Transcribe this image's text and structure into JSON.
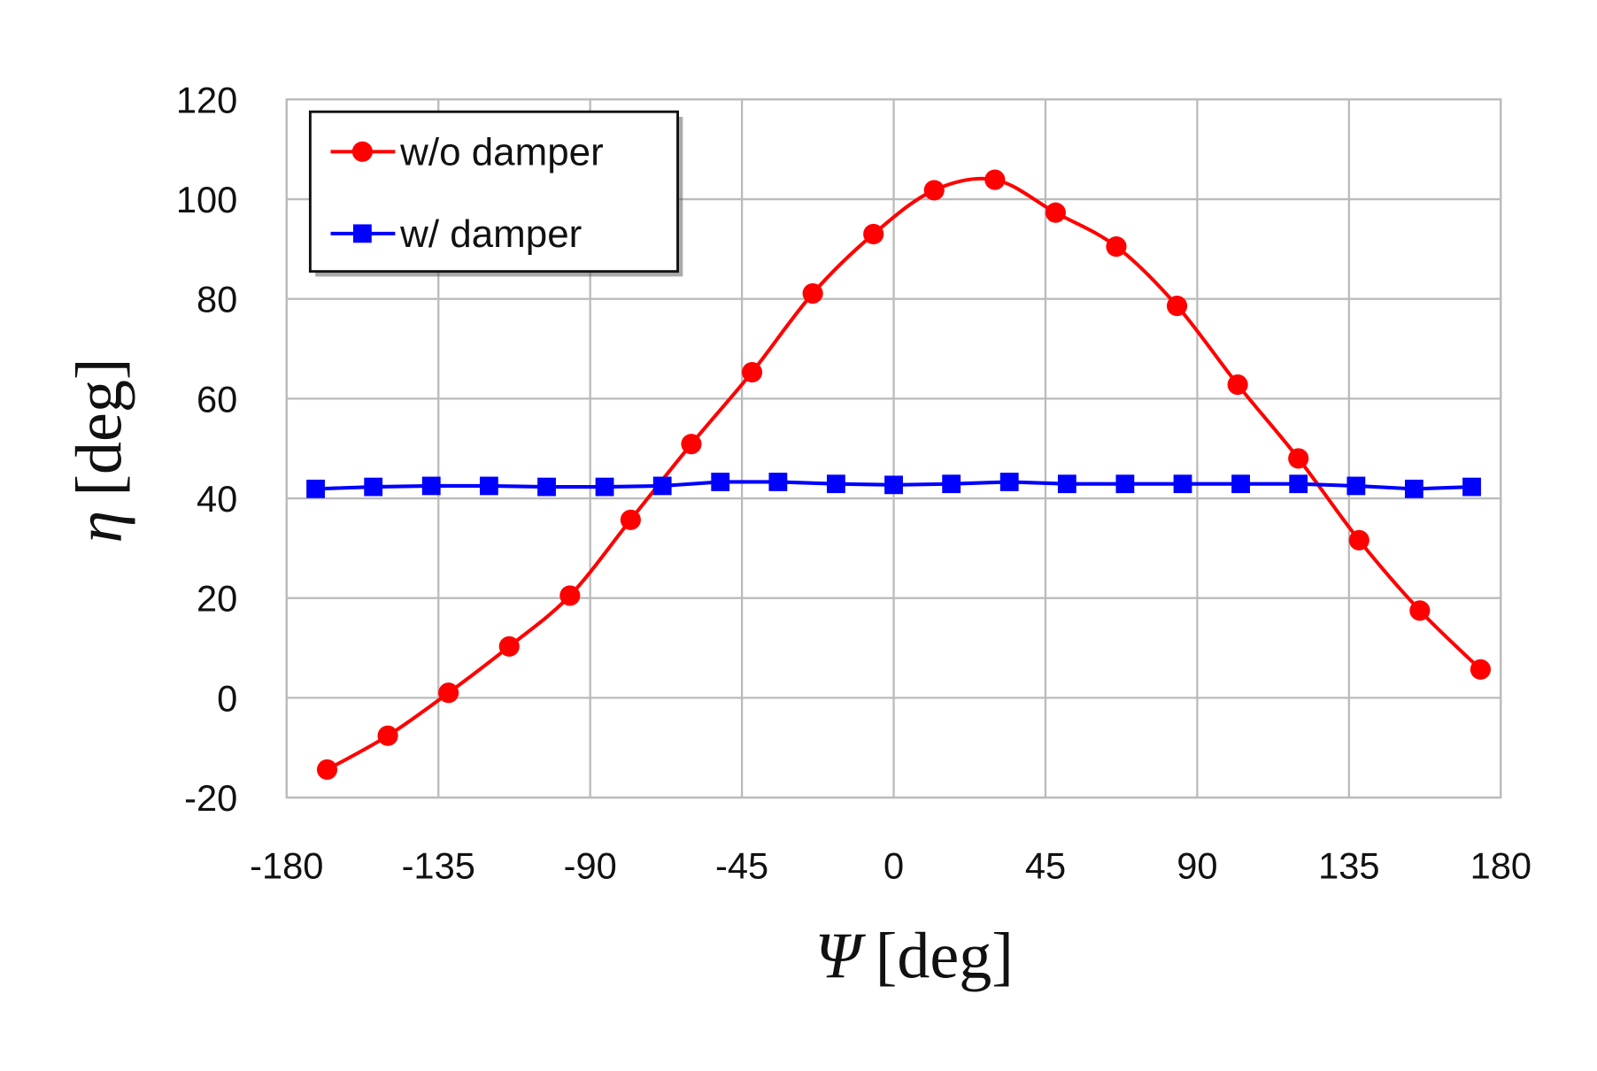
{
  "chart_data": {
    "type": "line",
    "title": "",
    "xlabel_symbol": "Ψ",
    "xlabel_unit": "[deg]",
    "ylabel_symbol": "η",
    "ylabel_unit": "[deg]",
    "xlim": [
      -180,
      180
    ],
    "ylim": [
      -20,
      120
    ],
    "xticks": [
      -180,
      -135,
      -90,
      -45,
      0,
      45,
      90,
      135,
      180
    ],
    "yticks": [
      -20,
      0,
      20,
      40,
      60,
      80,
      100,
      120
    ],
    "grid": true,
    "legend_position": "top-left",
    "series": [
      {
        "name": "w/o damper",
        "color": "#ff0000",
        "marker": "circle",
        "smooth": true,
        "x": [
          -168,
          -150,
          -132,
          -114,
          -96,
          -78,
          -60,
          -42,
          -24,
          -6,
          12,
          30,
          48,
          66,
          84,
          102,
          120,
          138,
          156,
          174
        ],
        "y": [
          -14.4,
          -7.6,
          1.0,
          10.3,
          20.5,
          35.7,
          50.9,
          65.3,
          81.1,
          93.0,
          101.8,
          103.9,
          97.3,
          90.5,
          78.6,
          62.8,
          48.0,
          31.6,
          17.5,
          5.7
        ]
      },
      {
        "name": "w/ damper",
        "color": "#0000ff",
        "marker": "square",
        "smooth": false,
        "x": [
          -171.4,
          -154.3,
          -137.1,
          -120,
          -102.9,
          -85.7,
          -68.6,
          -51.4,
          -34.3,
          -17.1,
          0,
          17.1,
          34.3,
          51.4,
          68.6,
          85.7,
          102.9,
          120,
          137.1,
          154.3,
          171.4
        ],
        "y": [
          41.9,
          42.3,
          42.5,
          42.5,
          42.3,
          42.3,
          42.5,
          43.3,
          43.3,
          42.9,
          42.7,
          42.9,
          43.3,
          42.9,
          42.9,
          42.9,
          42.9,
          42.9,
          42.5,
          41.9,
          42.3
        ]
      }
    ]
  }
}
